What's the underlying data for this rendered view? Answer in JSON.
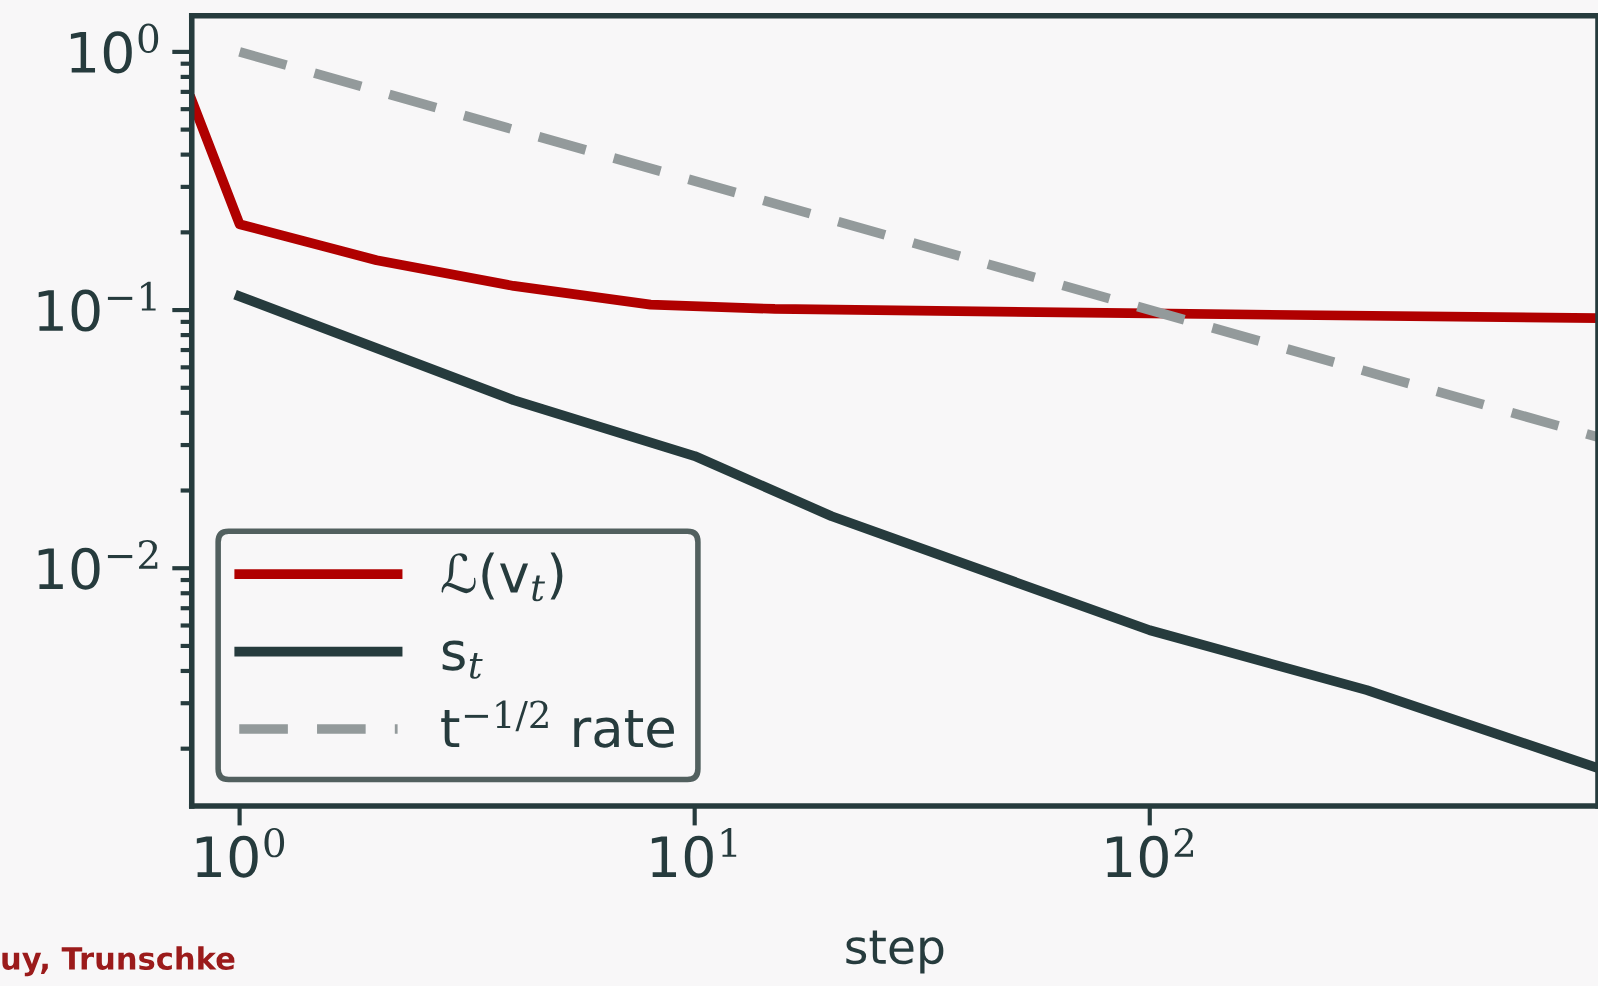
{
  "chart_data": {
    "type": "line",
    "xlabel": "step",
    "log": "xy",
    "xlim": [
      0.785,
      966
    ],
    "ylim": [
      0.0012,
      1.38
    ],
    "xticks": [
      {
        "value": 1,
        "label": "10$^{0}$"
      },
      {
        "value": 10,
        "label": "10$^{1}$"
      },
      {
        "value": 100,
        "label": "10$^{2}$"
      }
    ],
    "yticks": [
      {
        "value": 1,
        "label": "10$^{0}$"
      },
      {
        "value": 0.1,
        "label": "10$^{−1}$"
      },
      {
        "value": 0.01,
        "label": "10$^{−2}$"
      }
    ],
    "series": [
      {
        "name": "ℒ(v$_{t}$)",
        "color": "#b00000",
        "line_style": "solid",
        "x": [
          0.785,
          1,
          2,
          4,
          8,
          15,
          100,
          966
        ],
        "values": [
          0.65,
          0.215,
          0.156,
          0.124,
          0.105,
          0.101,
          0.097,
          0.093
        ]
      },
      {
        "name": "s$_{t}$",
        "color": "#263b3d",
        "line_style": "solid",
        "x": [
          1,
          4,
          10,
          20,
          100,
          300,
          966
        ],
        "values": [
          0.113,
          0.0448,
          0.0272,
          0.0159,
          0.00575,
          0.00337,
          0.00168
        ]
      },
      {
        "name": "t$^{−1/2}$ rate",
        "color": "#939a9b",
        "line_style": "dashed",
        "x": [
          1,
          966
        ],
        "values": [
          1,
          0.0322
        ]
      }
    ],
    "legend": "bottom left",
    "grid": false,
    "annotations": [
      "uy, Trunschke"
    ]
  }
}
